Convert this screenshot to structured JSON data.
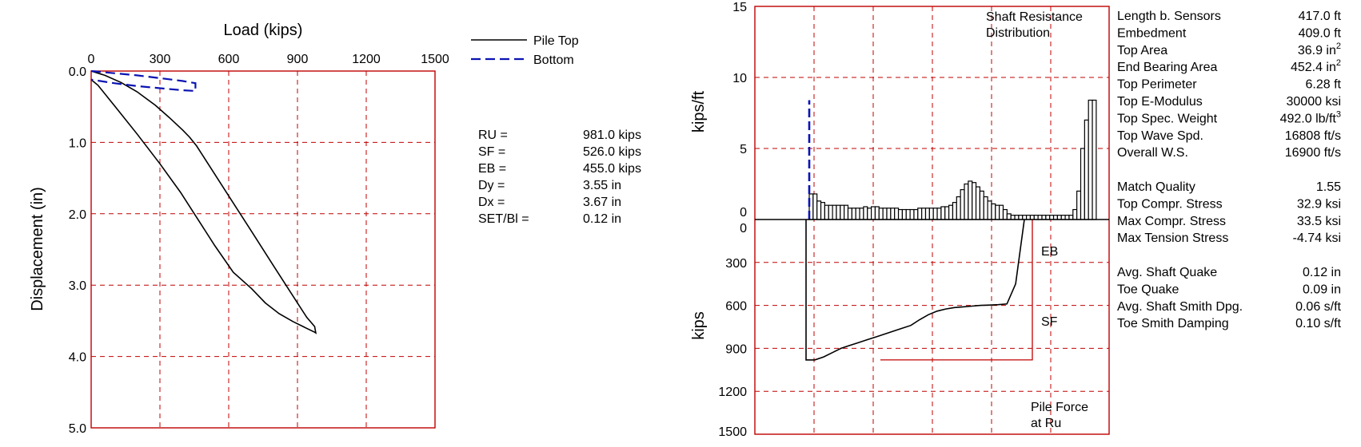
{
  "chart_data": [
    {
      "type": "line",
      "xlabel": "Load (kips)",
      "ylabel": "Displacement (in)",
      "xlim": [
        0,
        1500
      ],
      "ylim": [
        0,
        5.0
      ],
      "y_inverted": true,
      "x_ticks": [
        "0",
        "300",
        "600",
        "900",
        "1200",
        "1500"
      ],
      "y_ticks": [
        "0.0",
        "1.0",
        "2.0",
        "3.0",
        "4.0",
        "5.0"
      ],
      "grid": true,
      "legend_placement": "right",
      "series": [
        {
          "name": "Pile Top",
          "color": "#000000",
          "style": "solid",
          "x": [
            0,
            60,
            130,
            200,
            280,
            340,
            400,
            430,
            460,
            520,
            600,
            700,
            800,
            900,
            940,
            975,
            980,
            975,
            930,
            880,
            820,
            760,
            700,
            620,
            540,
            460,
            390,
            300,
            200,
            100,
            30,
            0
          ],
          "y": [
            0.0,
            0.06,
            0.16,
            0.29,
            0.48,
            0.65,
            0.83,
            0.93,
            1.05,
            1.35,
            1.75,
            2.25,
            2.75,
            3.25,
            3.45,
            3.58,
            3.67,
            3.66,
            3.59,
            3.51,
            3.4,
            3.25,
            3.05,
            2.82,
            2.45,
            2.05,
            1.7,
            1.3,
            0.88,
            0.48,
            0.2,
            0.12
          ]
        },
        {
          "name": "Bottom",
          "color": "#0b13b3",
          "style": "dashed",
          "x": [
            0,
            100,
            200,
            300,
            400,
            455,
            455,
            400,
            300,
            200,
            100,
            0
          ],
          "y": [
            0.0,
            0.03,
            0.06,
            0.1,
            0.14,
            0.17,
            0.28,
            0.27,
            0.24,
            0.21,
            0.17,
            0.12
          ]
        }
      ]
    },
    {
      "type": "bar",
      "title": "Shaft Resistance Distribution",
      "title_lines": [
        "Shaft Resistance",
        "Distribution"
      ],
      "ylabel": "kips/ft",
      "ylim": [
        0,
        15
      ],
      "y_ticks": [
        "0",
        "5",
        "10",
        "15"
      ],
      "grid": true,
      "shaft_values": [
        1.8,
        1.8,
        1.3,
        1.2,
        1.0,
        1.0,
        1.0,
        1.0,
        1.0,
        1.0,
        0.8,
        0.8,
        0.8,
        0.8,
        0.9,
        0.8,
        0.9,
        0.9,
        0.8,
        0.8,
        0.8,
        0.8,
        0.8,
        0.7,
        0.7,
        0.7,
        0.7,
        0.7,
        0.8,
        0.8,
        0.8,
        0.8,
        0.8,
        0.8,
        0.9,
        0.9,
        1.0,
        1.2,
        1.6,
        2.1,
        2.5,
        2.7,
        2.6,
        2.3,
        2.0,
        1.6,
        1.3,
        1.1,
        1.0,
        1.0,
        0.7,
        0.4,
        0.3,
        0.3,
        0.3,
        0.3,
        0.3,
        0.3,
        0.3,
        0.3,
        0.3,
        0.3,
        0.3,
        0.3,
        0.3,
        0.3,
        0.3,
        0.3,
        0.7,
        2.0,
        5.0,
        7.0,
        8.4,
        8.4
      ],
      "toe_marker": {
        "color": "#0b13b3",
        "value": 8.4
      }
    },
    {
      "type": "line",
      "title": "Pile Force at Ru",
      "title_lines": [
        "Pile Force",
        "at Ru"
      ],
      "ylabel": "kips",
      "ylim": [
        0,
        1500
      ],
      "y_inverted": true,
      "y_ticks": [
        "0",
        "300",
        "600",
        "900",
        "1200",
        "1500"
      ],
      "grid": true,
      "force_profile": [
        981,
        981,
        960,
        930,
        900,
        880,
        860,
        840,
        820,
        800,
        780,
        760,
        740,
        700,
        665,
        640,
        625,
        615,
        610,
        605,
        600,
        598,
        595,
        590,
        450,
        0
      ],
      "sf_reference_value": 981,
      "labels": {
        "eb": "EB",
        "sf": "SF"
      }
    }
  ],
  "legend": [
    {
      "label": "Pile Top",
      "style": "solid",
      "color": "#000000"
    },
    {
      "label": "Bottom",
      "style": "dashed",
      "color": "#0b13b3"
    }
  ],
  "results_table": [
    {
      "label": "RU  =",
      "value": "981.0 kips"
    },
    {
      "label": "SF  =",
      "value": "526.0 kips"
    },
    {
      "label": "EB  =",
      "value": "455.0 kips"
    },
    {
      "label": "Dy  =",
      "value": "3.55 in"
    },
    {
      "label": "Dx  =",
      "value": "3.67 in"
    },
    {
      "label": "SET/Bl =",
      "value": "0.12 in"
    }
  ],
  "properties_table": [
    {
      "label": "Length b. Sensors",
      "value": "417.0 ft"
    },
    {
      "label": "Embedment",
      "value": "409.0 ft"
    },
    {
      "label": "Top Area",
      "value": "36.9 in",
      "sup": "2"
    },
    {
      "label": "End Bearing Area",
      "value": "452.4 in",
      "sup": "2"
    },
    {
      "label": "Top Perimeter",
      "value": "6.28 ft"
    },
    {
      "label": "Top E-Modulus",
      "value": "30000 ksi"
    },
    {
      "label": "Top Spec. Weight",
      "value": "492.0 lb/ft",
      "sup": "3"
    },
    {
      "label": "Top Wave Spd.",
      "value": "16808 ft/s"
    },
    {
      "label": "Overall W.S.",
      "value": "16900 ft/s"
    },
    null,
    {
      "label": "Match Quality",
      "value": "1.55"
    },
    {
      "label": "Top Compr. Stress",
      "value": "32.9 ksi"
    },
    {
      "label": "Max Compr. Stress",
      "value": "33.5 ksi"
    },
    {
      "label": "Max Tension Stress",
      "value": "-4.74 ksi"
    },
    null,
    {
      "label": "Avg. Shaft Quake",
      "value": "0.12 in"
    },
    {
      "label": "Toe Quake",
      "value": "0.09 in"
    },
    {
      "label": "Avg. Shaft Smith Dpg.",
      "value": "0.06 s/ft"
    },
    {
      "label": "Toe Smith Damping",
      "value": "0.10 s/ft"
    }
  ]
}
